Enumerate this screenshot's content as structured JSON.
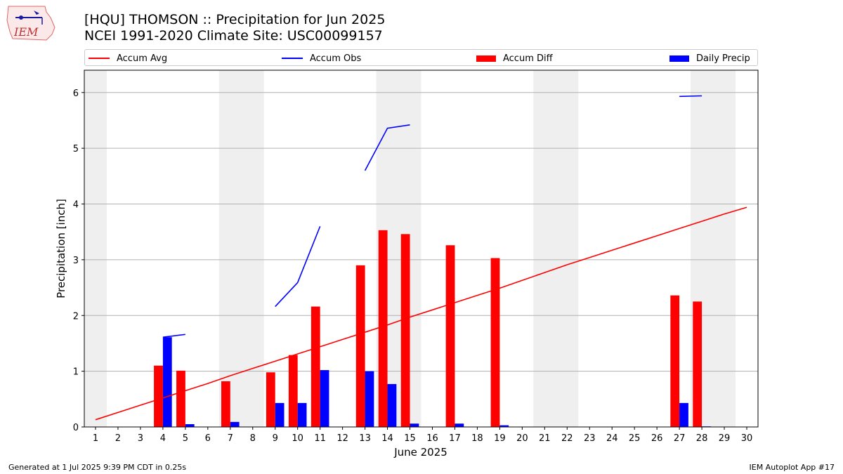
{
  "header": {
    "title_line1": "[HQU] THOMSON :: Precipitation for Jun 2025",
    "title_line2": "NCEI 1991-2020 Climate Site: USC00099157",
    "logo_text": "IEM"
  },
  "legend": [
    {
      "label": "Accum Avg",
      "kind": "line",
      "color": "#ff0000"
    },
    {
      "label": "Accum Obs",
      "kind": "line",
      "color": "#0000ff"
    },
    {
      "label": "Accum Diff",
      "kind": "bar",
      "color": "#ff0000"
    },
    {
      "label": "Daily Precip",
      "kind": "bar",
      "color": "#0000ff"
    }
  ],
  "footer": {
    "left": "Generated at 1 Jul 2025 9:39 PM CDT in 0.25s",
    "right": "IEM Autoplot App #17"
  },
  "chart_data": {
    "type": "bar",
    "xlabel": "June 2025",
    "ylabel": "Precipitation [inch]",
    "x": [
      1,
      2,
      3,
      4,
      5,
      6,
      7,
      8,
      9,
      10,
      11,
      12,
      13,
      14,
      15,
      16,
      17,
      18,
      19,
      20,
      21,
      22,
      23,
      24,
      25,
      26,
      27,
      28,
      29,
      30
    ],
    "xlim": [
      0.5,
      30.5
    ],
    "ylim": [
      0,
      6.4
    ],
    "yticks": [
      0,
      1,
      2,
      3,
      4,
      5,
      6
    ],
    "grid": "y",
    "legend_position": "top",
    "weekend_shading": [
      [
        0.5,
        1.5
      ],
      [
        6.5,
        8.5
      ],
      [
        13.5,
        15.5
      ],
      [
        20.5,
        22.5
      ],
      [
        27.5,
        29.5
      ]
    ],
    "series": [
      {
        "name": "Accum Avg",
        "type": "line",
        "color": "#ff0000",
        "values": [
          0.13,
          0.26,
          0.39,
          0.52,
          0.65,
          0.78,
          0.92,
          1.05,
          1.18,
          1.31,
          1.44,
          1.57,
          1.7,
          1.83,
          1.97,
          2.1,
          2.23,
          2.36,
          2.49,
          2.63,
          2.77,
          2.91,
          3.04,
          3.17,
          3.3,
          3.43,
          3.56,
          3.69,
          3.82,
          3.94
        ]
      },
      {
        "name": "Accum Obs",
        "type": "line",
        "color": "#0000ff",
        "values": [
          null,
          null,
          null,
          1.61,
          1.66,
          null,
          null,
          null,
          2.16,
          2.59,
          3.6,
          null,
          4.6,
          5.36,
          5.42,
          null,
          null,
          null,
          null,
          null,
          null,
          null,
          null,
          null,
          null,
          null,
          5.93,
          5.94,
          null,
          null
        ]
      },
      {
        "name": "Accum Diff",
        "type": "bar",
        "color": "#ff0000",
        "values": [
          0,
          0,
          0,
          1.1,
          1.01,
          0,
          0.82,
          0,
          0.98,
          1.29,
          2.16,
          0,
          2.9,
          3.53,
          3.46,
          0,
          3.26,
          0,
          3.03,
          0,
          0,
          0,
          0,
          0,
          0,
          0,
          2.36,
          2.25,
          0,
          0
        ]
      },
      {
        "name": "Daily Precip",
        "type": "bar",
        "color": "#0000ff",
        "values": [
          0,
          0,
          0,
          1.61,
          0.05,
          0,
          0.09,
          0,
          0.43,
          0.43,
          1.02,
          0,
          1.0,
          0.77,
          0.06,
          0,
          0.06,
          0,
          0.03,
          0,
          0,
          0,
          0,
          0,
          0,
          0,
          0.43,
          0.01,
          0,
          0
        ]
      }
    ]
  }
}
